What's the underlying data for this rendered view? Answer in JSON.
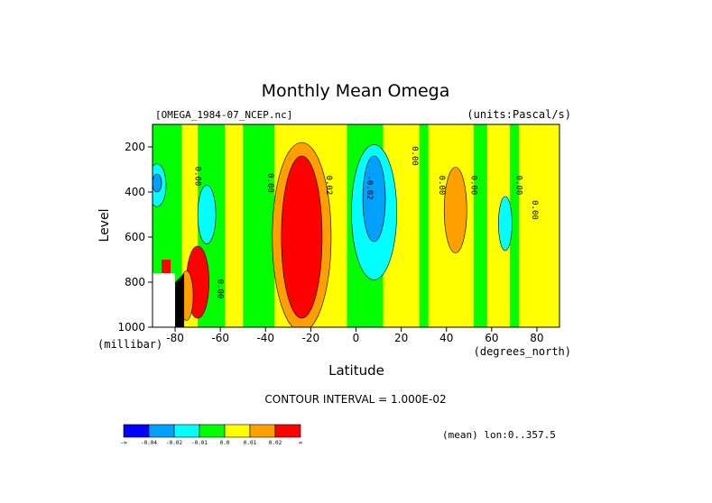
{
  "chart_data": {
    "type": "contour",
    "title": "Monthly Mean Omega",
    "dataset": "[OMEGA_1984-07_NCEP.nc]",
    "units": "(units:Pascal/s)",
    "xlabel": "Latitude",
    "x_units": "(degrees_north)",
    "ylabel": "Level",
    "y_units": "(millibar)",
    "xlim": [
      -90,
      90
    ],
    "ylim": [
      1000,
      100
    ],
    "x_ticks": [
      "-80",
      "-60",
      "-40",
      "-20",
      "0",
      "20",
      "40",
      "60",
      "80"
    ],
    "x_tick_values": [
      -80,
      -60,
      -40,
      -20,
      0,
      20,
      40,
      60,
      80
    ],
    "y_ticks": [
      "200",
      "400",
      "600",
      "800",
      "1000"
    ],
    "y_tick_values": [
      200,
      400,
      600,
      800,
      1000
    ],
    "contour_interval": "CONTOUR INTERVAL = 1.000E-02",
    "mean_note": "(mean) lon:0..357.5",
    "contour_labels": [
      {
        "text": "0.00",
        "lat": -71,
        "lev": 330
      },
      {
        "text": "0.00",
        "lat": -39,
        "lev": 360
      },
      {
        "text": "0.02",
        "lat": -13,
        "lev": 370
      },
      {
        "text": "-0.02",
        "lat": 5,
        "lev": 380
      },
      {
        "text": "0.00",
        "lat": 25,
        "lev": 240
      },
      {
        "text": "0.00",
        "lat": 37,
        "lev": 370
      },
      {
        "text": "0.00",
        "lat": 51,
        "lev": 370
      },
      {
        "text": "0.00",
        "lat": 71,
        "lev": 370
      },
      {
        "text": "0.00",
        "lat": 78,
        "lev": 480
      },
      {
        "text": "0.00",
        "lat": -61,
        "lev": 830
      }
    ],
    "colorbar": {
      "colors": [
        "#0000ff",
        "#00a0ff",
        "#00ffff",
        "#00ff00",
        "#ffff00",
        "#ffa000",
        "#ff0000"
      ],
      "labels": [
        "-∞",
        "-0.04",
        "-0.02",
        "-0.01",
        "0.0",
        "0.01",
        "0.02",
        "∞"
      ]
    }
  }
}
